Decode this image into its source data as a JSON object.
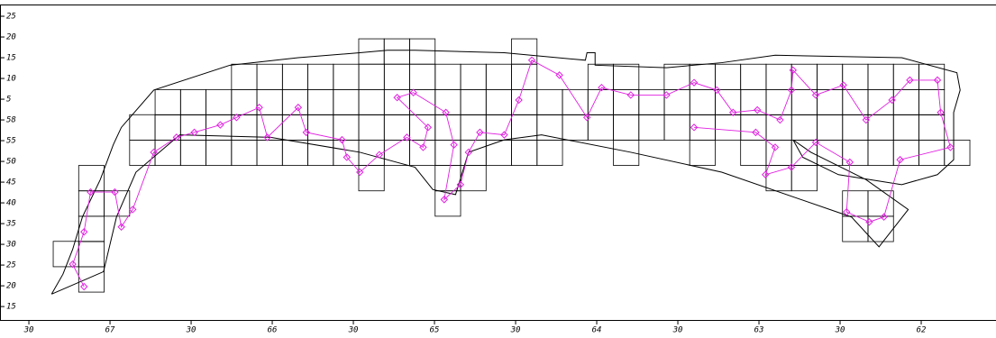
{
  "chart_data": {
    "type": "map",
    "xlim": [
      67.678,
      61.539
    ],
    "ylim": [
      57.196,
      58.482
    ],
    "xticks": [
      {
        "value": 67.5,
        "label": "30"
      },
      67,
      {
        "value": 66.5,
        "label": "30"
      },
      66,
      {
        "value": 65.5,
        "label": "30"
      },
      65,
      {
        "value": 64.5,
        "label": "30"
      },
      64,
      {
        "value": 63.5,
        "label": "30"
      },
      63,
      {
        "value": 62.5,
        "label": "30"
      },
      62
    ],
    "yticks": [
      {
        "value": 58.4167,
        "label": "25"
      },
      {
        "value": 58.3333,
        "label": "20"
      },
      {
        "value": 58.25,
        "label": "15"
      },
      {
        "value": 58.1667,
        "label": "10"
      },
      {
        "value": 58.0833,
        "label": "5"
      },
      58,
      {
        "value": 57.9167,
        "label": "55"
      },
      {
        "value": 57.8333,
        "label": "50"
      },
      {
        "value": 57.75,
        "label": "45"
      },
      {
        "value": 57.6667,
        "label": "40"
      },
      {
        "value": 57.5833,
        "label": "35"
      },
      {
        "value": 57.5,
        "label": "30"
      },
      {
        "value": 57.4167,
        "label": "25"
      },
      {
        "value": 57.3333,
        "label": "20"
      },
      {
        "value": 57.25,
        "label": "15"
      }
    ],
    "cell_width": 0.157,
    "cell_height": 0.102,
    "cell_rows": [
      {
        "lat": 58.326,
        "spans": [
          [
            65.467,
            64.996
          ],
          [
            64.525,
            64.368
          ]
        ]
      },
      {
        "lat": 58.224,
        "spans": [
          [
            66.251,
            64.368
          ],
          [
            64.054,
            63.74
          ],
          [
            63.584,
            61.857
          ]
        ]
      },
      {
        "lat": 58.122,
        "spans": [
          [
            66.722,
            61.857
          ]
        ]
      },
      {
        "lat": 58.021,
        "spans": [
          [
            66.879,
            61.857
          ]
        ]
      },
      {
        "lat": 57.919,
        "spans": [
          [
            66.879,
            64.211
          ],
          [
            63.897,
            63.74
          ],
          [
            63.427,
            63.27
          ],
          [
            63.113,
            61.7
          ]
        ]
      },
      {
        "lat": 57.817,
        "spans": [
          [
            67.193,
            67.036
          ],
          [
            65.467,
            65.31
          ],
          [
            64.996,
            64.682
          ],
          [
            62.956,
            62.642
          ]
        ]
      },
      {
        "lat": 57.715,
        "spans": [
          [
            67.193,
            66.879
          ],
          [
            64.996,
            64.839
          ],
          [
            62.485,
            62.171
          ]
        ]
      },
      {
        "lat": 57.613,
        "spans": [
          [
            67.193,
            67.036
          ],
          [
            62.485,
            62.171
          ]
        ]
      },
      {
        "lat": 57.512,
        "spans": [
          [
            67.35,
            67.036
          ]
        ]
      },
      {
        "lat": 57.41,
        "spans": [
          [
            67.193,
            67.036
          ]
        ]
      }
    ],
    "coastline": {
      "color": "#000000",
      "x": [
        67.36,
        67.29,
        67.23,
        67.17,
        67.06,
        66.98,
        66.93,
        66.73,
        66.26,
        65.84,
        65.46,
        65.29,
        65.12,
        64.57,
        64.07,
        64.06,
        64.01,
        64.01,
        63.57,
        63.23,
        62.9,
        62.12,
        61.78,
        61.76,
        61.8,
        61.8,
        61.9,
        62.12,
        62.51,
        62.73,
        62.79,
        62.68,
        62.34,
        62.08,
        62.26,
        62.43,
        63.23,
        63.79,
        64.34,
        64.57,
        64.79,
        64.87,
        65.01,
        65.12,
        65.46,
        66.01,
        66.57,
        66.84,
        66.96,
        67.04,
        67.36
      ],
      "y": [
        57.3,
        57.38,
        57.48,
        57.61,
        57.76,
        57.9,
        57.97,
        58.12,
        58.22,
        58.25,
        58.27,
        58.28,
        58.28,
        58.27,
        58.24,
        58.27,
        58.27,
        58.22,
        58.21,
        58.23,
        58.26,
        58.25,
        58.19,
        58.12,
        58.03,
        57.84,
        57.78,
        57.74,
        57.78,
        57.85,
        57.92,
        57.87,
        57.76,
        57.64,
        57.49,
        57.61,
        57.79,
        57.87,
        57.94,
        57.92,
        57.87,
        57.7,
        57.72,
        57.81,
        57.87,
        57.93,
        57.94,
        57.79,
        57.61,
        57.39,
        57.3
      ]
    },
    "track": {
      "color": "#e020e0",
      "x": [
        67.16,
        67.23,
        67.16,
        67.12,
        66.97,
        66.93,
        66.86,
        66.73,
        66.59,
        66.48,
        66.32,
        66.22,
        66.08,
        66.03,
        65.84,
        65.79,
        65.57,
        65.54,
        65.46,
        65.34,
        65.17,
        65.07,
        65.04,
        65.23,
        65.13,
        64.93,
        64.88,
        64.94,
        64.84,
        64.79,
        64.72,
        64.57,
        64.48,
        64.4,
        64.23,
        64.06,
        63.97,
        63.79,
        63.57,
        63.4,
        63.26,
        63.16,
        63.01,
        62.87,
        62.8,
        62.79,
        62.65,
        62.48,
        62.34,
        62.18,
        62.07,
        61.9,
        61.88,
        61.82,
        62.13,
        62.23,
        62.32,
        62.46,
        62.44,
        62.65,
        62.8,
        62.96,
        62.9,
        63.02,
        63.4
      ],
      "y": [
        57.33,
        57.42,
        57.55,
        57.71,
        57.71,
        57.57,
        57.64,
        57.87,
        57.93,
        57.95,
        57.98,
        58.01,
        58.05,
        57.93,
        58.05,
        57.95,
        57.92,
        57.85,
        57.79,
        57.86,
        57.93,
        57.89,
        57.97,
        58.09,
        58.11,
        58.03,
        57.9,
        57.68,
        57.74,
        57.87,
        57.95,
        57.94,
        58.08,
        58.24,
        58.18,
        58.01,
        58.13,
        58.1,
        58.1,
        58.15,
        58.12,
        58.03,
        58.04,
        58.0,
        58.12,
        58.2,
        58.1,
        58.14,
        58.0,
        58.08,
        58.16,
        58.16,
        58.03,
        57.89,
        57.84,
        57.61,
        57.59,
        57.63,
        57.83,
        57.91,
        57.81,
        57.78,
        57.89,
        57.95,
        57.97
      ]
    }
  }
}
